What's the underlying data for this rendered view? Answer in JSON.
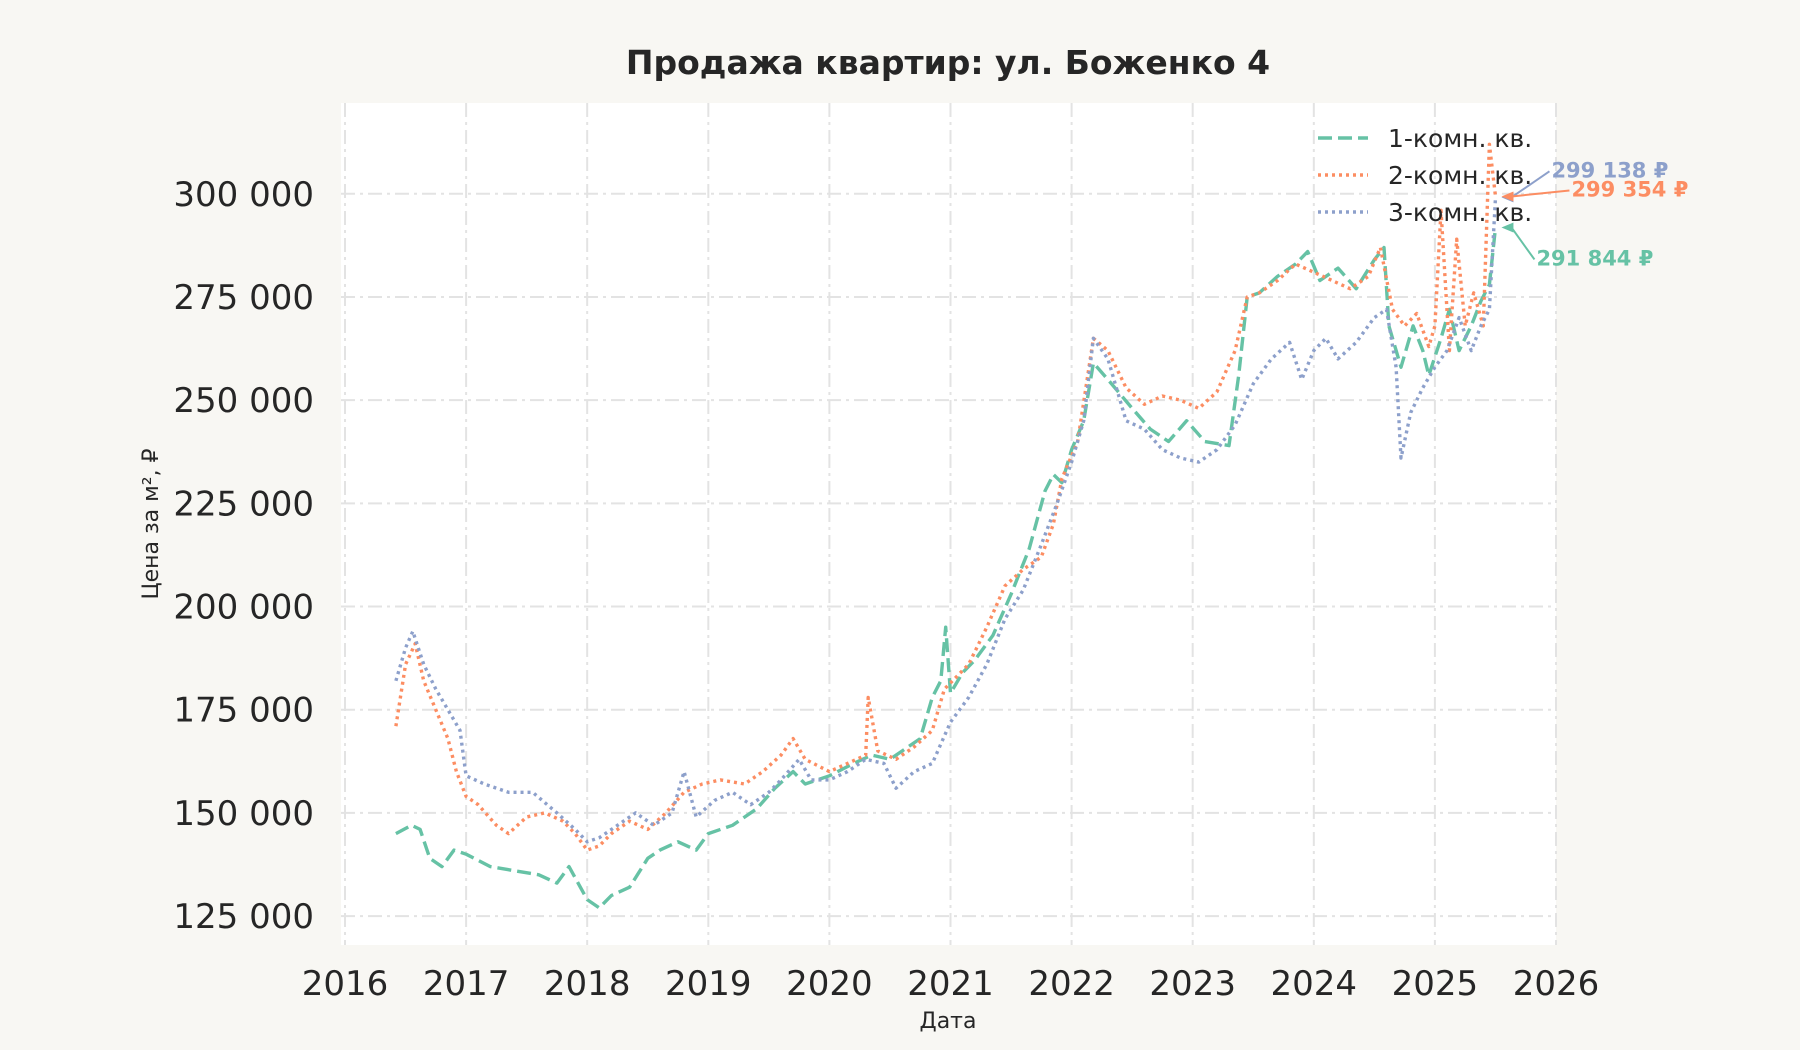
{
  "chart_data": {
    "type": "line",
    "title": "Продажа квартир: ул. Боженко 4",
    "xlabel": "Дата",
    "ylabel": "Цена за м², ₽",
    "xlim": [
      2016.0,
      2026.0
    ],
    "ylim": [
      118000,
      322000
    ],
    "x_ticks": [
      "2016",
      "2017",
      "2018",
      "2019",
      "2020",
      "2021",
      "2022",
      "2023",
      "2024",
      "2025",
      "2026"
    ],
    "y_ticks": [
      {
        "value": 125000,
        "label": "125 000"
      },
      {
        "value": 150000,
        "label": "150 000"
      },
      {
        "value": 175000,
        "label": "175 000"
      },
      {
        "value": 200000,
        "label": "200 000"
      },
      {
        "value": 225000,
        "label": "225 000"
      },
      {
        "value": 250000,
        "label": "250 000"
      },
      {
        "value": 275000,
        "label": "275 000"
      },
      {
        "value": 300000,
        "label": "300 000"
      }
    ],
    "grid": true,
    "legend": "top-right",
    "series": [
      {
        "name": "1-комн. кв.",
        "color": "#66c2a5",
        "dash": "dashed",
        "x": [
          2016.42,
          2016.55,
          2016.62,
          2016.7,
          2016.8,
          2016.9,
          2017.0,
          2017.2,
          2017.4,
          2017.6,
          2017.75,
          2017.85,
          2018.0,
          2018.1,
          2018.2,
          2018.35,
          2018.5,
          2018.6,
          2018.75,
          2018.9,
          2019.0,
          2019.2,
          2019.4,
          2019.55,
          2019.7,
          2019.8,
          2020.0,
          2020.2,
          2020.35,
          2020.5,
          2020.6,
          2020.75,
          2020.85,
          2020.92,
          2020.96,
          2021.0,
          2021.1,
          2021.2,
          2021.35,
          2021.5,
          2021.65,
          2021.78,
          2021.85,
          2021.92,
          2022.0,
          2022.1,
          2022.18,
          2022.3,
          2022.5,
          2022.65,
          2022.8,
          2022.95,
          2023.1,
          2023.3,
          2023.38,
          2023.45,
          2023.55,
          2023.7,
          2023.85,
          2023.95,
          2024.05,
          2024.2,
          2024.35,
          2024.5,
          2024.58,
          2024.62,
          2024.72,
          2024.82,
          2024.9,
          2024.95,
          2025.05,
          2025.12,
          2025.2,
          2025.3,
          2025.38,
          2025.45,
          2025.5
        ],
        "y": [
          145000,
          147000,
          146000,
          139000,
          137000,
          141000,
          140000,
          137000,
          136000,
          135000,
          133000,
          137000,
          129000,
          127000,
          130000,
          132000,
          139000,
          141000,
          143000,
          141000,
          145000,
          147000,
          151000,
          156000,
          160000,
          157000,
          159000,
          162000,
          164000,
          163000,
          165000,
          168000,
          178000,
          182000,
          195000,
          179000,
          184000,
          187000,
          193000,
          203000,
          214000,
          228000,
          232000,
          230000,
          238000,
          245000,
          259000,
          255000,
          248000,
          243000,
          240000,
          245000,
          240000,
          239000,
          256000,
          275000,
          276000,
          280000,
          283000,
          286000,
          279000,
          282000,
          277000,
          284000,
          287000,
          268000,
          258000,
          268000,
          262000,
          256000,
          265000,
          272000,
          262000,
          268000,
          274000,
          278000,
          291844
        ]
      },
      {
        "name": "2-комн. кв.",
        "color": "#fc8d62",
        "dash": "dotted",
        "x": [
          2016.42,
          2016.5,
          2016.58,
          2016.65,
          2016.75,
          2016.85,
          2016.92,
          2017.0,
          2017.1,
          2017.25,
          2017.35,
          2017.5,
          2017.65,
          2017.8,
          2017.9,
          2018.0,
          2018.1,
          2018.2,
          2018.35,
          2018.5,
          2018.65,
          2018.8,
          2018.95,
          2019.1,
          2019.3,
          2019.45,
          2019.6,
          2019.7,
          2019.8,
          2020.0,
          2020.15,
          2020.3,
          2020.32,
          2020.4,
          2020.55,
          2020.7,
          2020.85,
          2020.95,
          2021.05,
          2021.15,
          2021.3,
          2021.45,
          2021.6,
          2021.75,
          2021.85,
          2021.92,
          2022.05,
          2022.18,
          2022.3,
          2022.45,
          2022.6,
          2022.75,
          2022.9,
          2023.05,
          2023.2,
          2023.35,
          2023.45,
          2023.55,
          2023.7,
          2023.85,
          2024.0,
          2024.15,
          2024.3,
          2024.45,
          2024.55,
          2024.65,
          2024.75,
          2024.85,
          2024.95,
          2025.0,
          2025.05,
          2025.12,
          2025.18,
          2025.25,
          2025.32,
          2025.4,
          2025.45,
          2025.5
        ],
        "y": [
          171000,
          186000,
          191000,
          182000,
          175000,
          168000,
          160000,
          154000,
          152000,
          147000,
          145000,
          149000,
          150000,
          148000,
          145000,
          141000,
          142000,
          145000,
          148000,
          146000,
          150000,
          155000,
          157000,
          158000,
          157000,
          160000,
          164000,
          168000,
          163000,
          160000,
          162000,
          164000,
          178000,
          165000,
          163000,
          166000,
          170000,
          180000,
          183000,
          186000,
          195000,
          205000,
          209000,
          212000,
          220000,
          231000,
          240000,
          265000,
          262000,
          253000,
          249000,
          251000,
          250000,
          248000,
          252000,
          262000,
          275000,
          276000,
          279000,
          283000,
          281000,
          279000,
          277000,
          280000,
          287000,
          272000,
          268000,
          271000,
          263000,
          268000,
          296000,
          262000,
          289000,
          268000,
          276000,
          268000,
          312000,
          299354
        ]
      },
      {
        "name": "3-комн. кв.",
        "color": "#8da0cb",
        "dash": "dotted",
        "x": [
          2016.42,
          2016.5,
          2016.56,
          2016.65,
          2016.75,
          2016.85,
          2016.95,
          2017.0,
          2017.15,
          2017.35,
          2017.55,
          2017.75,
          2017.9,
          2018.0,
          2018.1,
          2018.25,
          2018.4,
          2018.55,
          2018.7,
          2018.8,
          2018.9,
          2019.05,
          2019.2,
          2019.35,
          2019.5,
          2019.6,
          2019.75,
          2019.85,
          2020.0,
          2020.15,
          2020.3,
          2020.45,
          2020.55,
          2020.7,
          2020.85,
          2021.0,
          2021.15,
          2021.3,
          2021.45,
          2021.6,
          2021.75,
          2021.88,
          2022.0,
          2022.1,
          2022.18,
          2022.3,
          2022.45,
          2022.6,
          2022.75,
          2022.9,
          2023.05,
          2023.2,
          2023.35,
          2023.5,
          2023.65,
          2023.8,
          2023.9,
          2024.0,
          2024.1,
          2024.2,
          2024.35,
          2024.5,
          2024.6,
          2024.68,
          2024.72,
          2024.8,
          2024.9,
          2025.0,
          2025.1,
          2025.2,
          2025.3,
          2025.38,
          2025.45,
          2025.5
        ],
        "y": [
          182000,
          190000,
          194000,
          186000,
          180000,
          175000,
          170000,
          159000,
          157000,
          155000,
          155000,
          150000,
          146000,
          143000,
          144000,
          147000,
          150000,
          147000,
          150000,
          160000,
          149000,
          153000,
          155000,
          152000,
          155000,
          158000,
          163000,
          158000,
          158000,
          160000,
          163000,
          162000,
          156000,
          160000,
          162000,
          172000,
          178000,
          186000,
          197000,
          204000,
          215000,
          225000,
          235000,
          245000,
          265000,
          260000,
          245000,
          243000,
          238000,
          236000,
          235000,
          238000,
          244000,
          254000,
          260000,
          264000,
          255000,
          262000,
          265000,
          260000,
          264000,
          270000,
          272000,
          258000,
          236000,
          247000,
          253000,
          258000,
          262000,
          270000,
          262000,
          268000,
          272000,
          299138
        ]
      }
    ],
    "annotations": [
      {
        "series": "3-комн. кв.",
        "text": "299 138 ₽",
        "x": 2025.5,
        "y": 299138
      },
      {
        "series": "2-комн. кв.",
        "text": "299 354 ₽",
        "x": 2025.5,
        "y": 299354
      },
      {
        "series": "1-комн. кв.",
        "text": "291 844 ₽",
        "x": 2025.5,
        "y": 291844
      }
    ]
  }
}
